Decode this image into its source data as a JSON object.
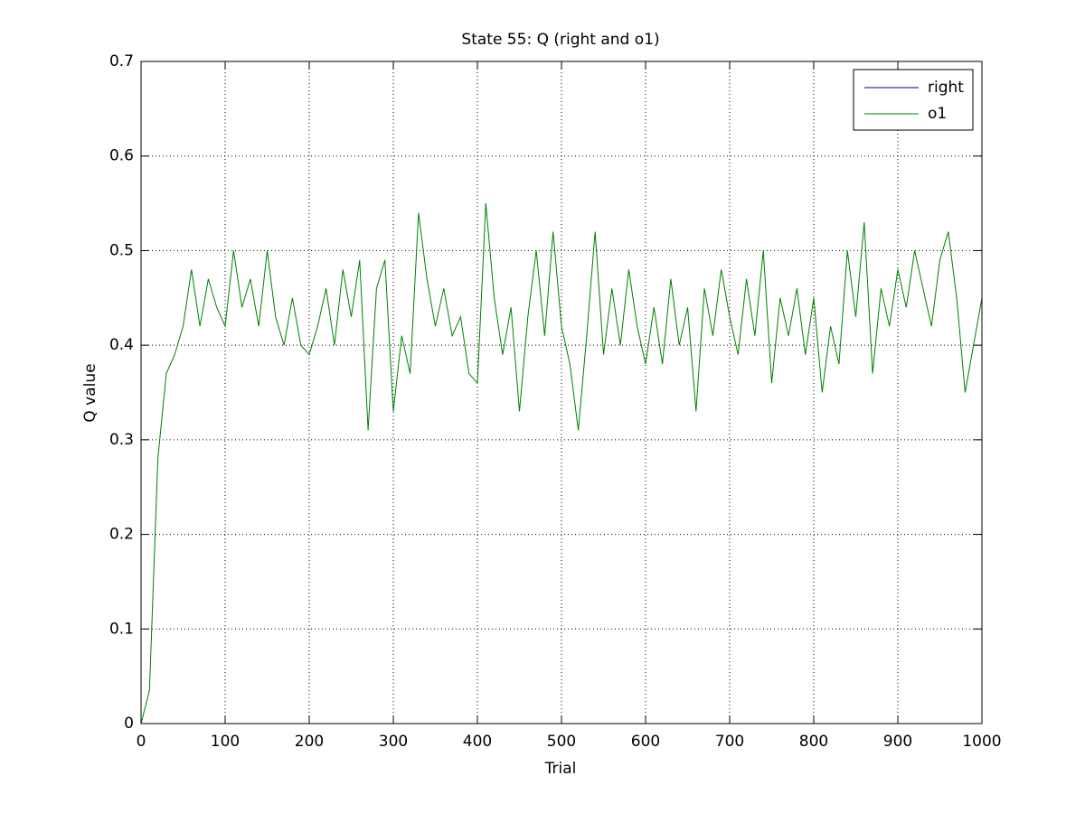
{
  "chart_data": {
    "type": "line",
    "title": "State 55: Q (right and o1)",
    "x_label": "Trial",
    "y_label": "Q value",
    "x": [
      0,
      10,
      20,
      30,
      40,
      50,
      60,
      70,
      80,
      90,
      100,
      110,
      120,
      130,
      140,
      150,
      160,
      170,
      180,
      190,
      200,
      210,
      220,
      230,
      240,
      250,
      260,
      270,
      280,
      290,
      300,
      310,
      320,
      330,
      340,
      350,
      360,
      370,
      380,
      390,
      400,
      410,
      420,
      430,
      440,
      450,
      460,
      470,
      480,
      490,
      500,
      510,
      520,
      530,
      540,
      550,
      560,
      570,
      580,
      590,
      600,
      610,
      620,
      630,
      640,
      650,
      660,
      670,
      680,
      690,
      700,
      710,
      720,
      730,
      740,
      750,
      760,
      770,
      780,
      790,
      800,
      810,
      820,
      830,
      840,
      850,
      860,
      870,
      880,
      890,
      900,
      910,
      920,
      930,
      940,
      950,
      960,
      970,
      980,
      990,
      1000
    ],
    "series": [
      {
        "name": "right",
        "color": "#00008b",
        "values": [
          0,
          0,
          0,
          0,
          0,
          0,
          0,
          0,
          0,
          0,
          0,
          0,
          0,
          0,
          0,
          0,
          0,
          0,
          0,
          0,
          0,
          0,
          0,
          0,
          0,
          0,
          0,
          0,
          0,
          0,
          0,
          0,
          0,
          0,
          0,
          0,
          0,
          0,
          0,
          0,
          0,
          0,
          0,
          0,
          0,
          0,
          0,
          0,
          0,
          0,
          0,
          0,
          0,
          0,
          0,
          0,
          0,
          0,
          0,
          0,
          0,
          0,
          0,
          0,
          0,
          0,
          0,
          0,
          0,
          0,
          0,
          0,
          0,
          0,
          0,
          0,
          0,
          0,
          0,
          0,
          0,
          0,
          0,
          0,
          0,
          0,
          0,
          0,
          0,
          0,
          0,
          0,
          0,
          0,
          0,
          0,
          0,
          0,
          0,
          0,
          0
        ]
      },
      {
        "name": "o1",
        "color": "#007f00",
        "values": [
          0,
          0.035,
          0.28,
          0.37,
          0.39,
          0.42,
          0.48,
          0.42,
          0.47,
          0.44,
          0.42,
          0.5,
          0.44,
          0.47,
          0.42,
          0.5,
          0.43,
          0.4,
          0.45,
          0.4,
          0.39,
          0.42,
          0.46,
          0.4,
          0.48,
          0.43,
          0.49,
          0.31,
          0.46,
          0.49,
          0.33,
          0.41,
          0.37,
          0.54,
          0.47,
          0.42,
          0.46,
          0.41,
          0.43,
          0.37,
          0.36,
          0.55,
          0.45,
          0.39,
          0.44,
          0.33,
          0.43,
          0.5,
          0.41,
          0.52,
          0.42,
          0.38,
          0.31,
          0.41,
          0.52,
          0.39,
          0.46,
          0.4,
          0.48,
          0.42,
          0.38,
          0.44,
          0.38,
          0.47,
          0.4,
          0.44,
          0.33,
          0.46,
          0.41,
          0.48,
          0.43,
          0.39,
          0.47,
          0.41,
          0.5,
          0.36,
          0.45,
          0.41,
          0.46,
          0.39,
          0.45,
          0.35,
          0.42,
          0.38,
          0.5,
          0.43,
          0.53,
          0.37,
          0.46,
          0.42,
          0.48,
          0.44,
          0.5,
          0.46,
          0.42,
          0.49,
          0.52,
          0.45,
          0.35,
          0.4,
          0.45
        ]
      }
    ],
    "xlim": [
      0,
      1000
    ],
    "xticks": [
      0,
      100,
      200,
      300,
      400,
      500,
      600,
      700,
      800,
      900,
      1000
    ],
    "ylim": [
      0,
      0.7
    ],
    "yticks": [
      0,
      0.1,
      0.2,
      0.3,
      0.4,
      0.5,
      0.6,
      0.7
    ],
    "grid": true,
    "legend": "top-right"
  }
}
